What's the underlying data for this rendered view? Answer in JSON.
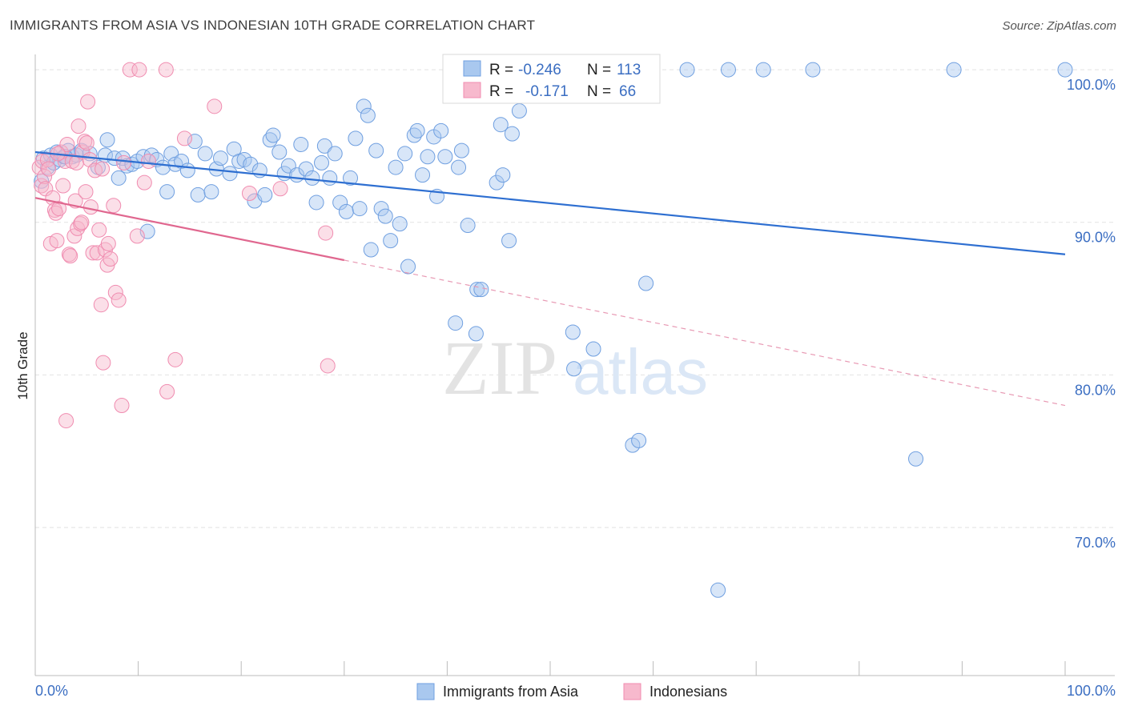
{
  "title": "IMMIGRANTS FROM ASIA VS INDONESIAN 10TH GRADE CORRELATION CHART",
  "source": "Source: ZipAtlas.com",
  "watermark": {
    "zip": "ZIP",
    "atlas": "atlas"
  },
  "stats": [
    {
      "r_label": "R =",
      "r_value": "-0.246",
      "n_label": "N =",
      "n_value": "113",
      "color": "#6f9fe0"
    },
    {
      "r_label": "R =",
      "r_value": "-0.171",
      "n_label": "N =",
      "n_value": "66",
      "color": "#f08cb0"
    }
  ],
  "legend": [
    {
      "label": "Immigrants from Asia",
      "color": "#a9c8ef"
    },
    {
      "label": "Indonesians",
      "color": "#f7b9cd"
    }
  ],
  "chart_data": {
    "type": "scatter",
    "title": "IMMIGRANTS FROM ASIA VS INDONESIAN 10TH GRADE CORRELATION CHART",
    "xlabel": "",
    "ylabel": "10th Grade",
    "xlim": [
      0,
      100
    ],
    "ylim": [
      60.3,
      101.0
    ],
    "x_tick_labels": [
      "0.0%",
      "100.0%"
    ],
    "y_ticks": [
      70,
      80,
      90,
      100
    ],
    "y_tick_labels": [
      "70.0%",
      "80.0%",
      "90.0%",
      "100.0%"
    ],
    "grid": true,
    "legend_position": "bottom-center",
    "series": [
      {
        "name": "Immigrants from Asia",
        "color": "#6f9fe0",
        "trend": {
          "x0": 0,
          "y0": 94.6,
          "x1": 100,
          "y1": 87.9,
          "solid_to": 100
        },
        "points": [
          [
            0.8,
            94.2
          ],
          [
            1.2,
            93.6
          ],
          [
            1.5,
            94.4
          ],
          [
            1.8,
            93.9
          ],
          [
            2.1,
            94.6
          ],
          [
            2.4,
            94.1
          ],
          [
            2.8,
            94.3
          ],
          [
            3.2,
            94.7
          ],
          [
            3.6,
            94.3
          ],
          [
            4.0,
            94.4
          ],
          [
            4.5,
            94.7
          ],
          [
            5.3,
            94.5
          ],
          [
            6.1,
            93.6
          ],
          [
            6.8,
            94.4
          ],
          [
            7.0,
            95.4
          ],
          [
            7.7,
            94.2
          ],
          [
            8.1,
            92.9
          ],
          [
            8.5,
            94.2
          ],
          [
            8.9,
            93.7
          ],
          [
            9.4,
            93.8
          ],
          [
            9.9,
            94.0
          ],
          [
            10.5,
            94.3
          ],
          [
            10.9,
            89.4
          ],
          [
            11.3,
            94.4
          ],
          [
            11.8,
            94.1
          ],
          [
            12.4,
            93.6
          ],
          [
            12.8,
            92.0
          ],
          [
            13.2,
            94.5
          ],
          [
            13.6,
            93.8
          ],
          [
            14.2,
            94.0
          ],
          [
            14.8,
            93.4
          ],
          [
            15.5,
            95.3
          ],
          [
            15.8,
            91.8
          ],
          [
            16.5,
            94.5
          ],
          [
            17.1,
            92.0
          ],
          [
            17.6,
            93.5
          ],
          [
            18.0,
            94.2
          ],
          [
            18.9,
            93.2
          ],
          [
            19.3,
            94.8
          ],
          [
            19.8,
            94.0
          ],
          [
            20.3,
            94.1
          ],
          [
            20.9,
            93.8
          ],
          [
            21.3,
            91.4
          ],
          [
            21.8,
            93.4
          ],
          [
            22.3,
            91.8
          ],
          [
            22.8,
            95.4
          ],
          [
            23.1,
            95.7
          ],
          [
            23.7,
            94.6
          ],
          [
            24.2,
            93.2
          ],
          [
            24.6,
            93.7
          ],
          [
            25.4,
            93.1
          ],
          [
            25.8,
            95.1
          ],
          [
            26.3,
            93.5
          ],
          [
            26.9,
            92.9
          ],
          [
            27.3,
            91.3
          ],
          [
            27.8,
            93.9
          ],
          [
            28.1,
            95.0
          ],
          [
            28.6,
            92.9
          ],
          [
            29.1,
            94.5
          ],
          [
            29.6,
            91.3
          ],
          [
            30.2,
            90.7
          ],
          [
            30.6,
            92.9
          ],
          [
            31.1,
            95.5
          ],
          [
            31.5,
            90.9
          ],
          [
            31.9,
            97.6
          ],
          [
            32.3,
            97.0
          ],
          [
            32.6,
            88.2
          ],
          [
            33.1,
            94.7
          ],
          [
            33.6,
            90.9
          ],
          [
            34.0,
            90.4
          ],
          [
            34.5,
            88.8
          ],
          [
            35.0,
            93.6
          ],
          [
            35.4,
            89.9
          ],
          [
            35.9,
            94.5
          ],
          [
            36.2,
            87.1
          ],
          [
            36.8,
            95.7
          ],
          [
            37.1,
            96.0
          ],
          [
            37.6,
            93.1
          ],
          [
            38.1,
            94.3
          ],
          [
            38.7,
            95.6
          ],
          [
            39.0,
            91.7
          ],
          [
            39.4,
            96.0
          ],
          [
            39.8,
            94.3
          ],
          [
            40.8,
            83.4
          ],
          [
            41.1,
            93.6
          ],
          [
            41.4,
            94.7
          ],
          [
            42.0,
            89.8
          ],
          [
            42.8,
            82.7
          ],
          [
            42.9,
            85.6
          ],
          [
            43.3,
            85.6
          ],
          [
            44.8,
            92.6
          ],
          [
            45.2,
            96.4
          ],
          [
            45.4,
            93.1
          ],
          [
            46.0,
            88.8
          ],
          [
            46.3,
            95.8
          ],
          [
            47.0,
            97.3
          ],
          [
            50.1,
            100.0
          ],
          [
            52.2,
            82.8
          ],
          [
            52.3,
            80.4
          ],
          [
            54.2,
            81.7
          ],
          [
            58.0,
            75.4
          ],
          [
            58.6,
            75.7
          ],
          [
            59.3,
            86.0
          ],
          [
            63.3,
            100.0
          ],
          [
            67.3,
            100.0
          ],
          [
            70.7,
            100.0
          ],
          [
            75.5,
            100.0
          ],
          [
            85.5,
            74.5
          ],
          [
            89.2,
            100.0
          ],
          [
            100.0,
            100.0
          ],
          [
            66.3,
            65.9
          ],
          [
            0.6,
            92.7
          ],
          [
            2.9,
            94.3
          ]
        ]
      },
      {
        "name": "Indonesians",
        "color": "#f08cb0",
        "trend": {
          "x0": 0,
          "y0": 91.6,
          "x1": 100,
          "y1": 78.0,
          "solid_to": 30
        },
        "points": [
          [
            0.4,
            93.6
          ],
          [
            0.6,
            92.4
          ],
          [
            0.7,
            94.0
          ],
          [
            0.9,
            93.0
          ],
          [
            1.0,
            92.2
          ],
          [
            1.2,
            94.1
          ],
          [
            1.5,
            88.6
          ],
          [
            1.7,
            91.6
          ],
          [
            1.9,
            90.8
          ],
          [
            2.0,
            90.6
          ],
          [
            2.1,
            88.8
          ],
          [
            2.3,
            90.9
          ],
          [
            2.5,
            94.6
          ],
          [
            2.7,
            92.4
          ],
          [
            2.9,
            94.0
          ],
          [
            3.1,
            95.1
          ],
          [
            3.3,
            87.9
          ],
          [
            3.4,
            87.8
          ],
          [
            3.6,
            94.0
          ],
          [
            3.8,
            89.1
          ],
          [
            3.9,
            91.4
          ],
          [
            4.0,
            93.9
          ],
          [
            4.1,
            89.6
          ],
          [
            4.2,
            96.3
          ],
          [
            4.4,
            89.9
          ],
          [
            4.5,
            90.0
          ],
          [
            4.6,
            94.6
          ],
          [
            4.8,
            95.3
          ],
          [
            5.0,
            95.2
          ],
          [
            5.1,
            97.9
          ],
          [
            5.3,
            94.1
          ],
          [
            5.4,
            91.0
          ],
          [
            5.6,
            88.0
          ],
          [
            5.8,
            93.4
          ],
          [
            6.0,
            88.0
          ],
          [
            6.2,
            89.5
          ],
          [
            6.4,
            84.6
          ],
          [
            6.6,
            80.8
          ],
          [
            6.8,
            88.2
          ],
          [
            7.0,
            87.2
          ],
          [
            7.1,
            88.6
          ],
          [
            7.3,
            87.6
          ],
          [
            7.6,
            91.1
          ],
          [
            7.8,
            85.4
          ],
          [
            8.1,
            84.9
          ],
          [
            8.4,
            78.0
          ],
          [
            8.6,
            93.9
          ],
          [
            9.2,
            100.0
          ],
          [
            9.9,
            89.1
          ],
          [
            10.1,
            100.0
          ],
          [
            10.6,
            92.6
          ],
          [
            11.0,
            94.0
          ],
          [
            12.8,
            78.9
          ],
          [
            12.7,
            100.0
          ],
          [
            13.6,
            81.0
          ],
          [
            14.5,
            95.5
          ],
          [
            17.4,
            97.6
          ],
          [
            20.8,
            91.9
          ],
          [
            23.8,
            92.2
          ],
          [
            28.2,
            89.3
          ],
          [
            28.4,
            80.6
          ],
          [
            3.0,
            77.0
          ],
          [
            1.3,
            93.5
          ],
          [
            2.2,
            94.5
          ],
          [
            6.5,
            93.5
          ],
          [
            4.9,
            92.0
          ]
        ]
      }
    ]
  }
}
